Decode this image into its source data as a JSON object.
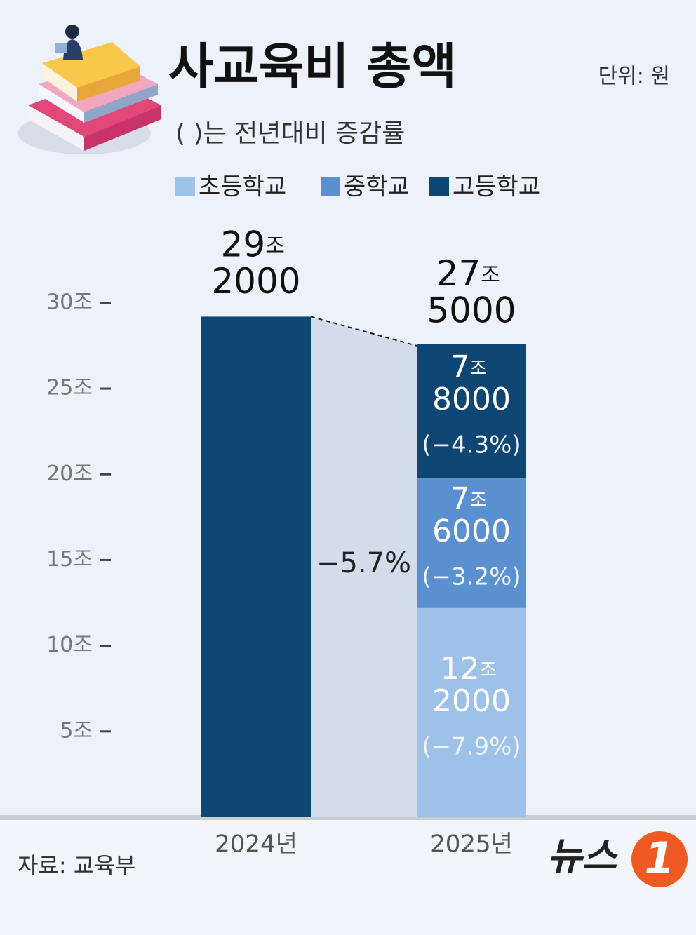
{
  "title": "사교육비 총액",
  "unit_note": "단위: 원",
  "subtitle": "( )는 전년대비 증감률",
  "source": "자료: 교육부",
  "logo": {
    "text": "뉴스",
    "mark": "1"
  },
  "chart_data": {
    "type": "bar",
    "stacked": true,
    "categories": [
      "2024년",
      "2025년"
    ],
    "series": [
      {
        "name": "초등학교",
        "color": "#9dc1e8",
        "values": [
          null,
          12.2
        ],
        "value_labels": [
          null,
          "12조 2000"
        ],
        "changes": [
          null,
          -7.9
        ],
        "change_labels": [
          null,
          "(−7.9%)"
        ]
      },
      {
        "name": "중학교",
        "color": "#5a8fd0",
        "values": [
          null,
          7.6
        ],
        "value_labels": [
          null,
          "7조 6000"
        ],
        "changes": [
          null,
          -3.2
        ],
        "change_labels": [
          null,
          "(−3.2%)"
        ]
      },
      {
        "name": "고등학교",
        "color": "#0e4673",
        "values": [
          null,
          7.8
        ],
        "value_labels": [
          null,
          "7조 8000"
        ],
        "changes": [
          null,
          -4.3
        ],
        "change_labels": [
          null,
          "(−4.3%)"
        ]
      }
    ],
    "totals": {
      "color": "#0e4673",
      "values": [
        29.2,
        27.5
      ],
      "value_labels": [
        "29조 2000",
        "27조 5000"
      ]
    },
    "total_change": {
      "value": -5.7,
      "label": "−5.7%"
    },
    "ylim": [
      0,
      32
    ],
    "yticks": [
      {
        "value": 5,
        "label": "5조"
      },
      {
        "value": 10,
        "label": "10조"
      },
      {
        "value": 15,
        "label": "15조"
      },
      {
        "value": 20,
        "label": "20조"
      },
      {
        "value": 25,
        "label": "25조"
      },
      {
        "value": 30,
        "label": "30조"
      }
    ]
  }
}
